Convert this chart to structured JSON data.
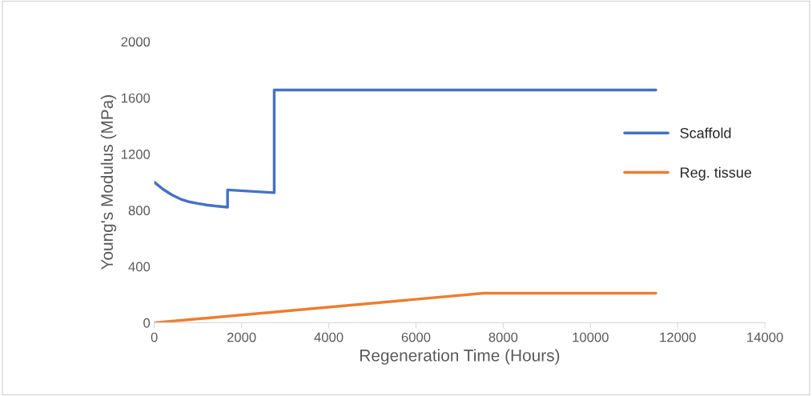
{
  "chart_data": {
    "type": "line",
    "xlabel": "Regeneration Time (Hours)",
    "ylabel": "Young's Modulus (MPa)",
    "xlim": [
      0,
      14000
    ],
    "xticks": [
      0,
      2000,
      4000,
      6000,
      8000,
      10000,
      12000,
      14000
    ],
    "ylim": [
      0,
      2000
    ],
    "yticks": [
      0,
      400,
      800,
      1200,
      1600,
      2000
    ],
    "grid": false,
    "legend": "right",
    "marker": "none",
    "line_style": "solid",
    "series": [
      {
        "name": "Scaffold",
        "color": "#4472c4",
        "x": [
          0,
          200,
          400,
          600,
          800,
          1000,
          1200,
          1400,
          1680,
          1680,
          2750,
          2750,
          11500
        ],
        "values": [
          1000,
          950,
          910,
          880,
          860,
          848,
          838,
          830,
          822,
          945,
          925,
          1655,
          1655
        ]
      },
      {
        "name": "Reg. tissue",
        "color": "#ed7d31",
        "x": [
          0,
          7550,
          11500
        ],
        "values": [
          0,
          210,
          210
        ]
      }
    ]
  }
}
